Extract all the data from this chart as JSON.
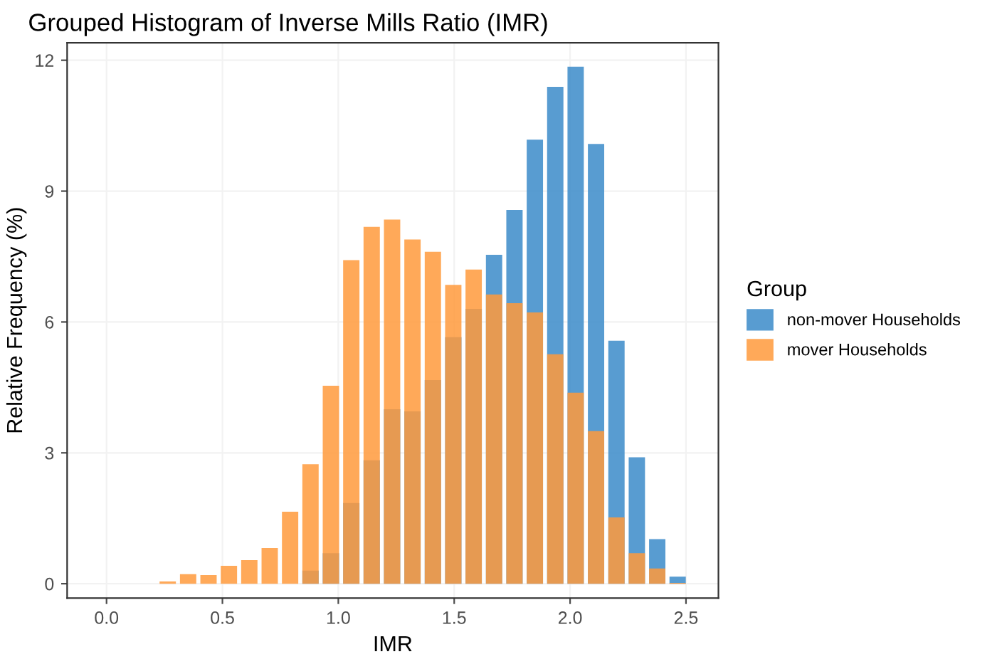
{
  "chart_data": {
    "type": "histogram",
    "title": "Grouped Histogram of Inverse Mills Ratio (IMR)",
    "xlabel": "IMR",
    "ylabel": "Relative Frequency (%)",
    "legend_title": "Group",
    "bins": [
      0.22,
      0.308,
      0.396,
      0.484,
      0.572,
      0.66,
      0.748,
      0.836,
      0.924,
      1.012,
      1.1,
      1.188,
      1.276,
      1.364,
      1.452,
      1.54,
      1.628,
      1.716,
      1.804,
      1.892,
      1.98,
      2.068,
      2.156,
      2.244,
      2.332,
      2.42,
      2.508
    ],
    "series": [
      {
        "name": "non-mover Households",
        "color": "#3b8bc9",
        "values": [
          0,
          0,
          0,
          0,
          null,
          null,
          null,
          0.3,
          0.7,
          1.85,
          2.83,
          4.0,
          3.95,
          4.67,
          5.65,
          6.3,
          7.54,
          8.57,
          10.18,
          11.39,
          11.85,
          10.08,
          5.57,
          2.9,
          1.02,
          0.16
        ]
      },
      {
        "name": "mover Households",
        "color": "#ff9a3c",
        "values": [
          0.05,
          0.22,
          0.2,
          0.41,
          0.54,
          0.82,
          1.65,
          2.74,
          4.54,
          7.42,
          8.18,
          8.35,
          7.89,
          7.61,
          6.85,
          7.2,
          6.63,
          6.43,
          6.22,
          5.26,
          4.38,
          3.5,
          1.52,
          0.7,
          0.35,
          0.02
        ]
      }
    ],
    "xlim": [
      -0.17,
      2.64
    ],
    "ylim": [
      -0.33,
      12.4
    ],
    "xticks": [
      {
        "value": 0,
        "label": "0.0"
      },
      {
        "value": 0.5,
        "label": "0.5"
      },
      {
        "value": 1,
        "label": "1.0"
      },
      {
        "value": 1.5,
        "label": "1.5"
      },
      {
        "value": 2,
        "label": "2.0"
      },
      {
        "value": 2.5,
        "label": "2.5"
      }
    ],
    "yticks": [
      0,
      3,
      6,
      9,
      12
    ],
    "grid": true,
    "legend": "right"
  }
}
